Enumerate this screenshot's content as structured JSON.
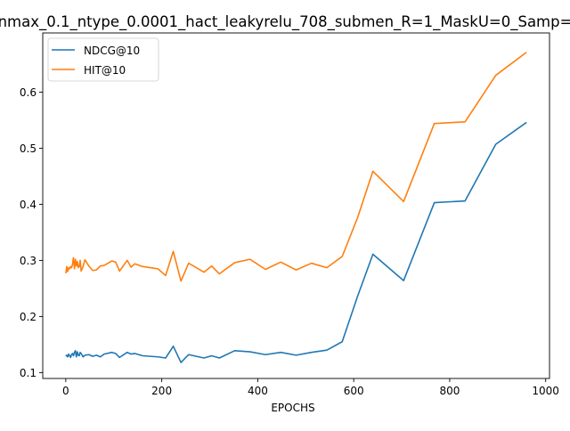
{
  "chart_data": {
    "type": "line",
    "title": "nmax_0.1_ntype_0.0001_hact_leakyrelu_708_submen_R=1_MaskU=0_Samp=",
    "xlabel": "EPOCHS",
    "ylabel": "",
    "xlim": [
      -48,
      1008
    ],
    "ylim": [
      0.0895,
      0.7055
    ],
    "xticks": [
      0,
      200,
      400,
      600,
      800,
      1000
    ],
    "yticks": [
      0.1,
      0.2,
      0.3,
      0.4,
      0.5,
      0.6
    ],
    "grid": false,
    "legend_position": "top-left",
    "series": [
      {
        "name": "NDCG@10",
        "color": "#1f77b4",
        "x": [
          0,
          2,
          4,
          6,
          8,
          10,
          12,
          14,
          16,
          18,
          20,
          22,
          24,
          26,
          28,
          30,
          32,
          36,
          40,
          48,
          56,
          64,
          72,
          80,
          96,
          104,
          112,
          128,
          136,
          144,
          160,
          176,
          192,
          208,
          224,
          240,
          256,
          288,
          304,
          320,
          352,
          384,
          416,
          448,
          480,
          512,
          544,
          576,
          608,
          640,
          704,
          768,
          832,
          896,
          960
        ],
        "y": [
          0.129,
          0.131,
          0.128,
          0.133,
          0.13,
          0.127,
          0.132,
          0.134,
          0.13,
          0.136,
          0.139,
          0.128,
          0.137,
          0.131,
          0.13,
          0.136,
          0.134,
          0.128,
          0.131,
          0.132,
          0.129,
          0.131,
          0.128,
          0.133,
          0.136,
          0.134,
          0.127,
          0.136,
          0.133,
          0.134,
          0.13,
          0.129,
          0.128,
          0.126,
          0.147,
          0.118,
          0.132,
          0.126,
          0.13,
          0.126,
          0.139,
          0.137,
          0.132,
          0.136,
          0.131,
          0.136,
          0.14,
          0.155,
          0.236,
          0.311,
          0.264,
          0.403,
          0.406,
          0.507,
          0.546
        ]
      },
      {
        "name": "HIT@10",
        "color": "#ff7f0e",
        "x": [
          0,
          2,
          4,
          6,
          8,
          10,
          12,
          14,
          16,
          18,
          20,
          22,
          24,
          26,
          28,
          30,
          32,
          36,
          40,
          48,
          56,
          64,
          72,
          80,
          96,
          104,
          112,
          128,
          136,
          144,
          160,
          176,
          192,
          208,
          224,
          240,
          256,
          288,
          304,
          320,
          352,
          384,
          416,
          448,
          480,
          512,
          544,
          576,
          608,
          640,
          704,
          768,
          832,
          896,
          960
        ],
        "y": [
          0.277,
          0.289,
          0.28,
          0.287,
          0.285,
          0.289,
          0.287,
          0.293,
          0.305,
          0.285,
          0.302,
          0.29,
          0.298,
          0.287,
          0.289,
          0.3,
          0.281,
          0.289,
          0.301,
          0.29,
          0.282,
          0.283,
          0.29,
          0.291,
          0.299,
          0.297,
          0.281,
          0.3,
          0.288,
          0.294,
          0.289,
          0.287,
          0.285,
          0.273,
          0.316,
          0.263,
          0.295,
          0.279,
          0.29,
          0.276,
          0.296,
          0.302,
          0.284,
          0.297,
          0.283,
          0.295,
          0.287,
          0.307,
          0.376,
          0.459,
          0.405,
          0.544,
          0.547,
          0.63,
          0.671
        ]
      }
    ]
  }
}
